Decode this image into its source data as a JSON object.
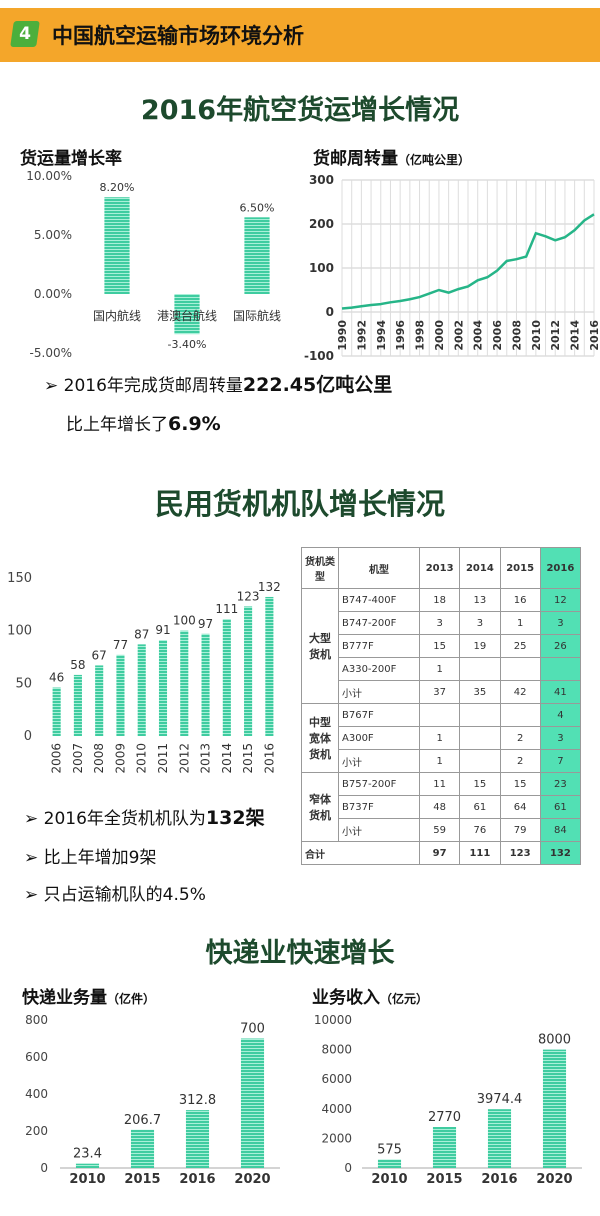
{
  "header": {
    "badge": "4",
    "title": "中国航空运输市场环境分析"
  },
  "sections": {
    "s1": "2016年航空货运增长情况",
    "s2": "民用货机机队增长情况",
    "s3": "快递业快速增长"
  },
  "subs": {
    "growth": "货运量增长率",
    "turnover": "货邮周转量",
    "turnover_unit": "（亿吨公里）",
    "express_vol": "快递业务量",
    "express_vol_unit": "（亿件）",
    "revenue": "业务收入",
    "revenue_unit": "（亿元）"
  },
  "bullets": {
    "b1a": "2016年完成货邮周转量",
    "b1b": "222.45亿吨公里",
    "b2a": "比上年增长了",
    "b2b": "6.9%",
    "b3a": "2016年全货机机队为",
    "b3b": "132架",
    "b4": "比上年增加9架",
    "b5": "只占运输机队的4.5%"
  },
  "table": {
    "headers": [
      "货机类型",
      "机型",
      "2013",
      "2014",
      "2015",
      "2016"
    ],
    "groups": [
      {
        "type": "大型货机",
        "rows": [
          [
            "B747-400F",
            "18",
            "13",
            "16",
            "12"
          ],
          [
            "B747-200F",
            "3",
            "3",
            "1",
            "3"
          ],
          [
            "B777F",
            "15",
            "19",
            "25",
            "26"
          ],
          [
            "A330-200F",
            "1",
            "",
            "",
            ""
          ],
          [
            "小计",
            "37",
            "35",
            "42",
            "41"
          ]
        ]
      },
      {
        "type": "中型宽体货机",
        "rows": [
          [
            "B767F",
            "",
            "",
            "",
            "4"
          ],
          [
            "A300F",
            "1",
            "",
            "2",
            "3"
          ],
          [
            "小计",
            "1",
            "",
            "2",
            "7"
          ]
        ]
      },
      {
        "type": "窄体货机",
        "rows": [
          [
            "B757-200F",
            "11",
            "15",
            "15",
            "23"
          ],
          [
            "B737F",
            "48",
            "61",
            "64",
            "61"
          ],
          [
            "小计",
            "59",
            "76",
            "79",
            "84"
          ]
        ]
      }
    ],
    "total": [
      "合计",
      "97",
      "111",
      "123",
      "132"
    ]
  },
  "chart_data": [
    {
      "type": "bar",
      "title": "货运量增长率",
      "categories": [
        "国内航线",
        "港澳台航线",
        "国际航线"
      ],
      "values": [
        8.2,
        -3.4,
        6.5
      ],
      "value_labels": [
        "8.20%",
        "-3.40%",
        "6.50%"
      ],
      "ylim": [
        -5,
        10
      ],
      "yticks": [
        "-5.00%",
        "0.00%",
        "5.00%",
        "10.00%"
      ],
      "color": "#3fcca0"
    },
    {
      "type": "line",
      "title": "货邮周转量（亿吨公里）",
      "x": [
        1990,
        1991,
        1992,
        1993,
        1994,
        1995,
        1996,
        1997,
        1998,
        1999,
        2000,
        2001,
        2002,
        2003,
        2004,
        2005,
        2006,
        2007,
        2008,
        2009,
        2010,
        2011,
        2012,
        2013,
        2014,
        2015,
        2016
      ],
      "values": [
        8,
        10,
        13,
        16,
        18,
        22,
        25,
        29,
        34,
        42,
        50,
        44,
        52,
        58,
        72,
        79,
        94,
        116,
        120,
        126,
        179,
        172,
        163,
        170,
        186,
        208,
        222
      ],
      "xticks": [
        "1990",
        "1992",
        "1994",
        "1996",
        "1998",
        "2000",
        "2002",
        "2004",
        "2006",
        "2008",
        "2010",
        "2012",
        "2014",
        "2016"
      ],
      "ylim": [
        -100,
        300
      ],
      "yticks": [
        "-100",
        "0",
        "100",
        "200",
        "300"
      ],
      "grid": true,
      "color": "#26b588"
    },
    {
      "type": "bar",
      "categories": [
        "2006",
        "2007",
        "2008",
        "2009",
        "2010",
        "2011",
        "2012",
        "2013",
        "2014",
        "2015",
        "2016"
      ],
      "values": [
        46,
        58,
        67,
        77,
        87,
        91,
        100,
        97,
        111,
        123,
        132
      ],
      "ylim": [
        0,
        150
      ],
      "yticks": [
        "0",
        "50",
        "100",
        "150"
      ],
      "color": "#3fcca0"
    },
    {
      "type": "bar",
      "title": "快递业务量（亿件）",
      "categories": [
        "2010",
        "2015",
        "2016",
        "2020"
      ],
      "values": [
        23.4,
        206.7,
        312.8,
        700
      ],
      "value_labels": [
        "23.4",
        "206.7",
        "312.8",
        "700"
      ],
      "ylim": [
        0,
        800
      ],
      "yticks": [
        "0",
        "200",
        "400",
        "600",
        "800"
      ],
      "color": "#3fcca0"
    },
    {
      "type": "bar",
      "title": "业务收入（亿元）",
      "categories": [
        "2010",
        "2015",
        "2016",
        "2020"
      ],
      "values": [
        575,
        2770,
        3974.4,
        8000
      ],
      "value_labels": [
        "575",
        "2770",
        "3974.4",
        "8000"
      ],
      "ylim": [
        0,
        10000
      ],
      "yticks": [
        "0",
        "2000",
        "4000",
        "6000",
        "8000",
        "10000"
      ],
      "color": "#3fcca0"
    }
  ]
}
